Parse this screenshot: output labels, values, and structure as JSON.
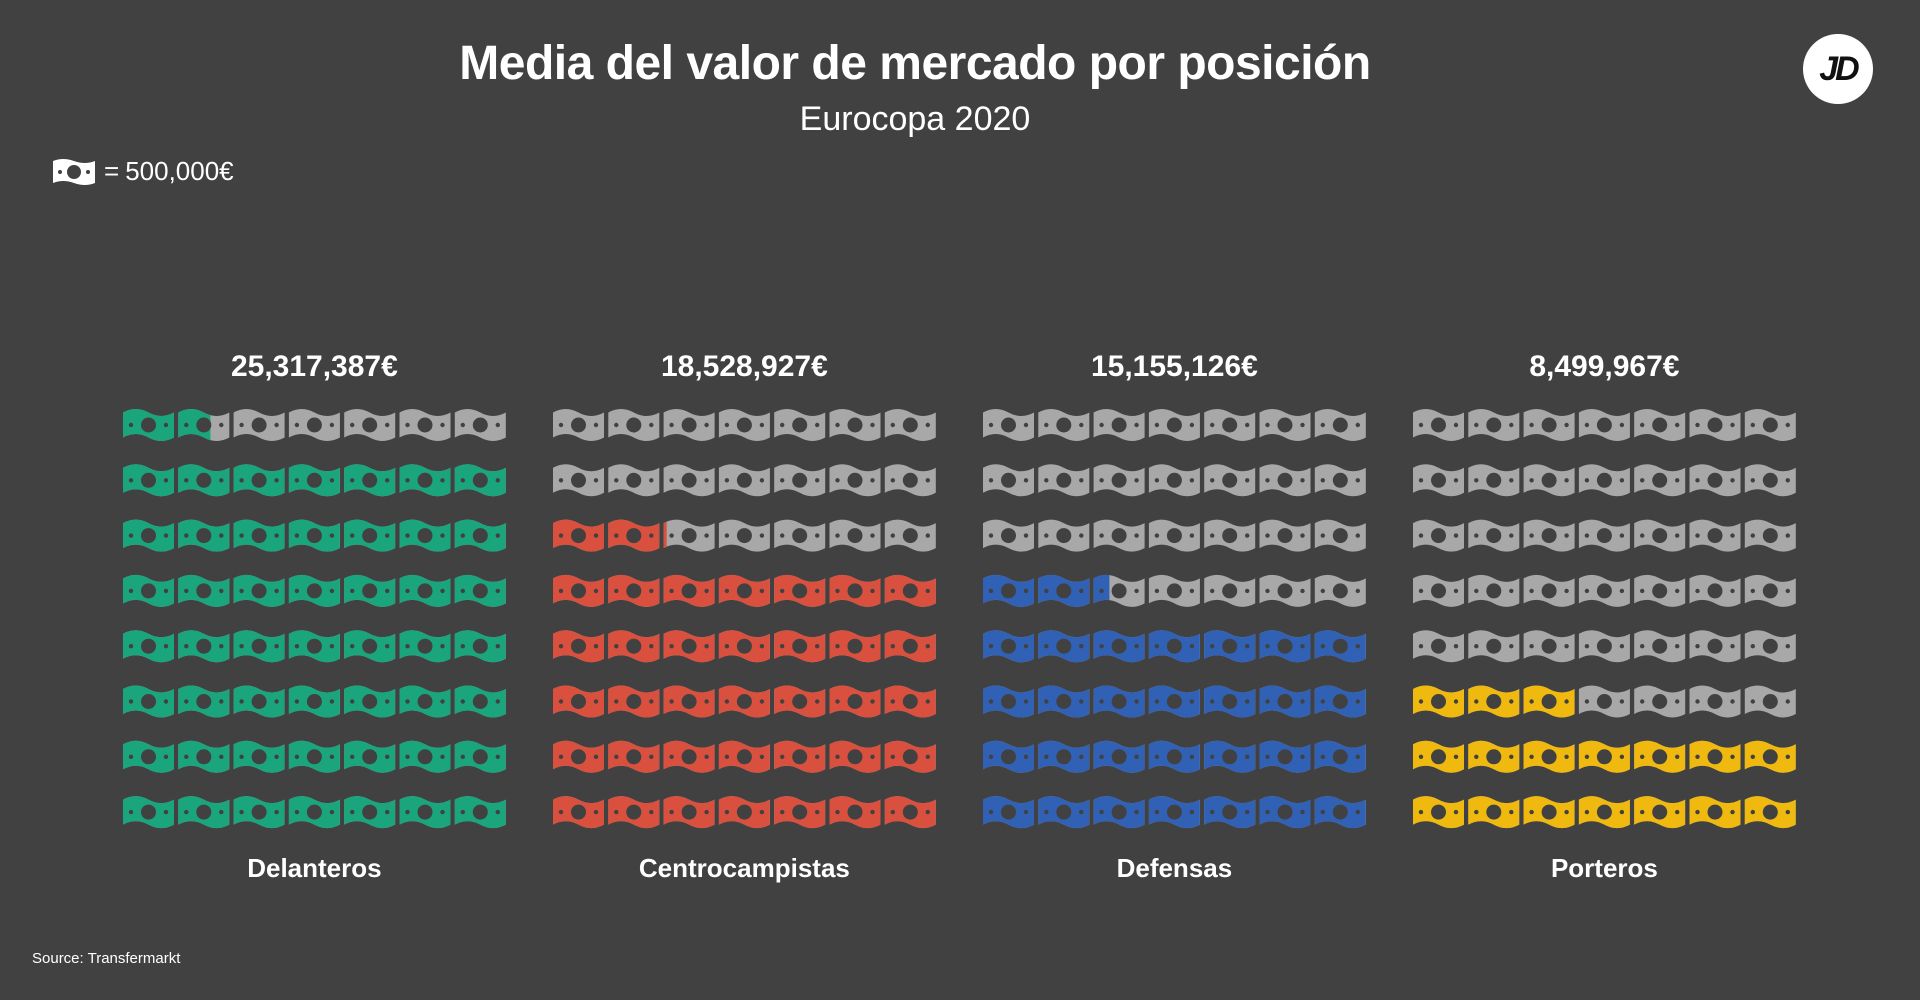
{
  "header": {
    "title": "Media del valor de mercado por posición",
    "subtitle": "Eurocopa 2020",
    "logo_text": "JD"
  },
  "legend": {
    "icon": "banknote-icon",
    "equals": "=",
    "unit_value": "500,000€"
  },
  "source": "Source: Transfermarkt",
  "colors": {
    "background": "#414141",
    "empty": "#a8a8a8",
    "note_hole": "#414141"
  },
  "chart_data": {
    "type": "pictogram",
    "unit_eur": 500000,
    "grid_columns": 7,
    "grid_rows": 8,
    "categories": [
      "Delanteros",
      "Centrocampistas",
      "Defensas",
      "Porteros"
    ],
    "series": [
      {
        "category": "Delanteros",
        "value_label": "25,317,387€",
        "value": 25317387,
        "units": 50.63,
        "color": "#1aa57c"
      },
      {
        "category": "Centrocampistas",
        "value_label": "18,528,927€",
        "value": 18528927,
        "units": 37.06,
        "color": "#d9503f"
      },
      {
        "category": "Defensas",
        "value_label": "15,155,126€",
        "value": 15155126,
        "units": 30.31,
        "color": "#3161b5"
      },
      {
        "category": "Porteros",
        "value_label": "8,499,967€",
        "value": 8499967,
        "units": 17.0,
        "color": "#f0b90f"
      }
    ]
  }
}
